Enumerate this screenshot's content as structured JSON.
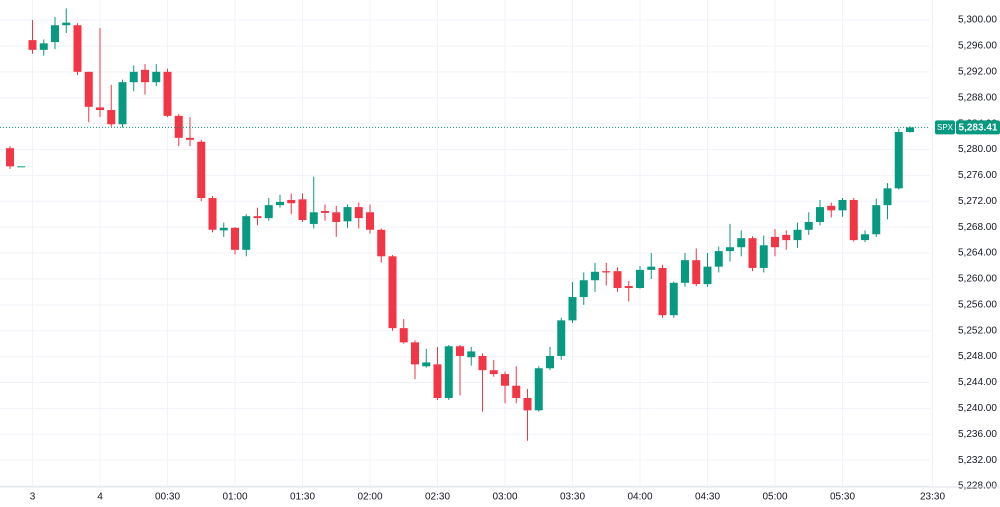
{
  "chart_data": {
    "type": "candlestick",
    "categories": [
      null,
      null,
      "3",
      null,
      null,
      null,
      null,
      null,
      "4",
      null,
      null,
      null,
      null,
      null,
      "00:30",
      null,
      null,
      null,
      null,
      null,
      "01:00",
      null,
      null,
      null,
      null,
      null,
      "01:30",
      null,
      null,
      null,
      null,
      null,
      "02:00",
      null,
      null,
      null,
      null,
      null,
      "02:30",
      null,
      null,
      null,
      null,
      null,
      "03:00",
      null,
      null,
      null,
      null,
      null,
      "03:30",
      null,
      null,
      null,
      null,
      null,
      "04:00",
      null,
      null,
      null,
      null,
      null,
      "04:30",
      null,
      null,
      null,
      null,
      null,
      "05:00",
      null,
      null,
      null,
      null,
      null,
      "05:30",
      null,
      null,
      null,
      null,
      null,
      null,
      null,
      "23:30"
    ],
    "series": [
      {
        "name": "SPX",
        "up_color": "#089981",
        "down_color": "#f23645",
        "open": [
          5280.2,
          5277.4,
          5296.9,
          5295.4,
          5296.6,
          5299.2,
          5299.2,
          5292,
          5286.5,
          5286.1,
          5283.9,
          5290.4,
          5292.3,
          5290.4,
          5292,
          5285.2,
          5281.8,
          5281.2,
          5272.5,
          5267.5,
          5267.9,
          5264.5,
          5269.7,
          5269.4,
          5271.4,
          5272.2,
          5272.3,
          5268.5,
          5270.5,
          5270.3,
          5268.9,
          5271.1,
          5270.3,
          5267.6,
          5263.5,
          5252.4,
          5250.2,
          5246.5,
          5246.8,
          5241.6,
          5249.6,
          5247.9,
          5248.1,
          5245.9,
          5245.3,
          5243.5,
          5241.6,
          5239.7,
          5246.2,
          5248.1,
          5253.6,
          5257.2,
          5259.8,
          5261.2,
          5261.2,
          5258.9,
          5258.6,
          5261.4,
          5261.7,
          5254.4,
          5259.4,
          5262.9,
          5259.2,
          5261.9,
          5264.3,
          5264.9,
          5266.3,
          5261.7,
          5266.5,
          5266.8,
          5266,
          5267.6,
          5268.8,
          5271.3,
          5270.6,
          5272.2,
          5266,
          5266.9,
          5271.4,
          5274,
          5282.7,
          null,
          null
        ],
        "high": [
          5280.5,
          5277.4,
          5300,
          5297,
          5300.5,
          5301.8,
          5299.5,
          5292,
          5298.8,
          5290,
          5290.8,
          5293,
          5293.2,
          5293.2,
          5292.5,
          5285.5,
          5285,
          5281.5,
          5272.8,
          5268.7,
          5268,
          5270,
          5271,
          5272.5,
          5273,
          5273.2,
          5273.2,
          5275.8,
          5271.5,
          5271.3,
          5271.5,
          5271.8,
          5271.5,
          5267.8,
          5263.7,
          5253.8,
          5250.5,
          5249.2,
          5249.5,
          5249.8,
          5249.8,
          5249.5,
          5248.5,
          5247.5,
          5245.7,
          5246.5,
          5243,
          5246.5,
          5249.5,
          5254,
          5259.5,
          5261,
          5262.5,
          5262.5,
          5261.8,
          5259.7,
          5262,
          5264,
          5262.2,
          5259.6,
          5264,
          5264.7,
          5264,
          5265,
          5268.5,
          5267.5,
          5266.6,
          5266.7,
          5267.7,
          5267.5,
          5268.7,
          5270.3,
          5272.2,
          5271.8,
          5272.5,
          5272.5,
          5267.5,
          5272.4,
          5274.8,
          5283.2,
          5283.6,
          null,
          null
        ],
        "low": [
          5277,
          5277.4,
          5294.8,
          5294.5,
          5295.5,
          5298,
          5291.5,
          5284.2,
          5285,
          5283.5,
          5283.4,
          5289,
          5288.5,
          5289.8,
          5285,
          5280.5,
          5280.5,
          5272,
          5267.2,
          5266.5,
          5263.8,
          5263.5,
          5268.3,
          5269,
          5271,
          5270,
          5268.8,
          5267.8,
          5269,
          5266.5,
          5267.9,
          5267.8,
          5267,
          5262.5,
          5252,
          5250,
          5244.5,
          5246.3,
          5241.3,
          5241.3,
          5242,
          5246.6,
          5239.5,
          5244.9,
          5240.8,
          5240.8,
          5235,
          5239.5,
          5245.9,
          5247.5,
          5253.2,
          5256,
          5258,
          5259,
          5258,
          5256.5,
          5258.5,
          5260,
          5254,
          5254,
          5258.8,
          5258.9,
          5258.8,
          5261,
          5262.7,
          5263.5,
          5261.2,
          5261,
          5263.5,
          5264.5,
          5264.8,
          5266.8,
          5268.3,
          5269.5,
          5269.6,
          5265.8,
          5265.7,
          5266.5,
          5269.2,
          5273.8,
          5282.6,
          null,
          null
        ],
        "close": [
          5277.4,
          5277.4,
          5295.4,
          5296.4,
          5299.2,
          5299.6,
          5292,
          5286.6,
          5286.1,
          5283.9,
          5290.4,
          5292,
          5290.4,
          5292,
          5285.2,
          5281.8,
          5281.5,
          5272.5,
          5267.6,
          5267.9,
          5264.5,
          5269.7,
          5269.4,
          5271.4,
          5271.9,
          5271.7,
          5269.1,
          5270.3,
          5270.2,
          5268.8,
          5271.1,
          5269.4,
          5267.6,
          5263.5,
          5252.4,
          5250.2,
          5246.8,
          5247.1,
          5241.6,
          5249.6,
          5248.1,
          5248.8,
          5245.9,
          5245.3,
          5243.5,
          5241.6,
          5239.7,
          5246.2,
          5248.1,
          5253.6,
          5257.2,
          5259.8,
          5261.1,
          5261,
          5258.6,
          5258.6,
          5261.4,
          5261.9,
          5254.4,
          5259.4,
          5262.9,
          5259.2,
          5261.9,
          5264.3,
          5264.9,
          5266.3,
          5261.7,
          5265.2,
          5264.9,
          5266,
          5267.6,
          5268.8,
          5271.1,
          5270.6,
          5272.2,
          5266,
          5266.9,
          5271.4,
          5274,
          5282.7,
          5283.41,
          null,
          null
        ]
      }
    ],
    "last_price": {
      "value": 5283.41,
      "label": "5,283.41",
      "color": "#089981"
    },
    "ylim": [
      5227.85,
      5303.1
    ],
    "yticks": [
      {
        "value": 5228,
        "label": "5,228.00"
      },
      {
        "value": 5232,
        "label": "5,232.00"
      },
      {
        "value": 5236,
        "label": "5,236.00"
      },
      {
        "value": 5240,
        "label": "5,240.00"
      },
      {
        "value": 5244,
        "label": "5,244.00"
      },
      {
        "value": 5248,
        "label": "5,248.00"
      },
      {
        "value": 5252,
        "label": "5,252.00"
      },
      {
        "value": 5256,
        "label": "5,256.00"
      },
      {
        "value": 5260,
        "label": "5,260.00"
      },
      {
        "value": 5264,
        "label": "5,264.00"
      },
      {
        "value": 5268,
        "label": "5,268.00"
      },
      {
        "value": 5272,
        "label": "5,272.00"
      },
      {
        "value": 5276,
        "label": "5,276.00"
      },
      {
        "value": 5280,
        "label": "5,280.00"
      },
      {
        "value": 5284,
        "label": "5,284.00"
      },
      {
        "value": 5288,
        "label": "5,288.00"
      },
      {
        "value": 5292,
        "label": "5,292.00"
      },
      {
        "value": 5296,
        "label": "5,296.00"
      },
      {
        "value": 5300,
        "label": "5,300.00"
      }
    ],
    "grid": true
  }
}
